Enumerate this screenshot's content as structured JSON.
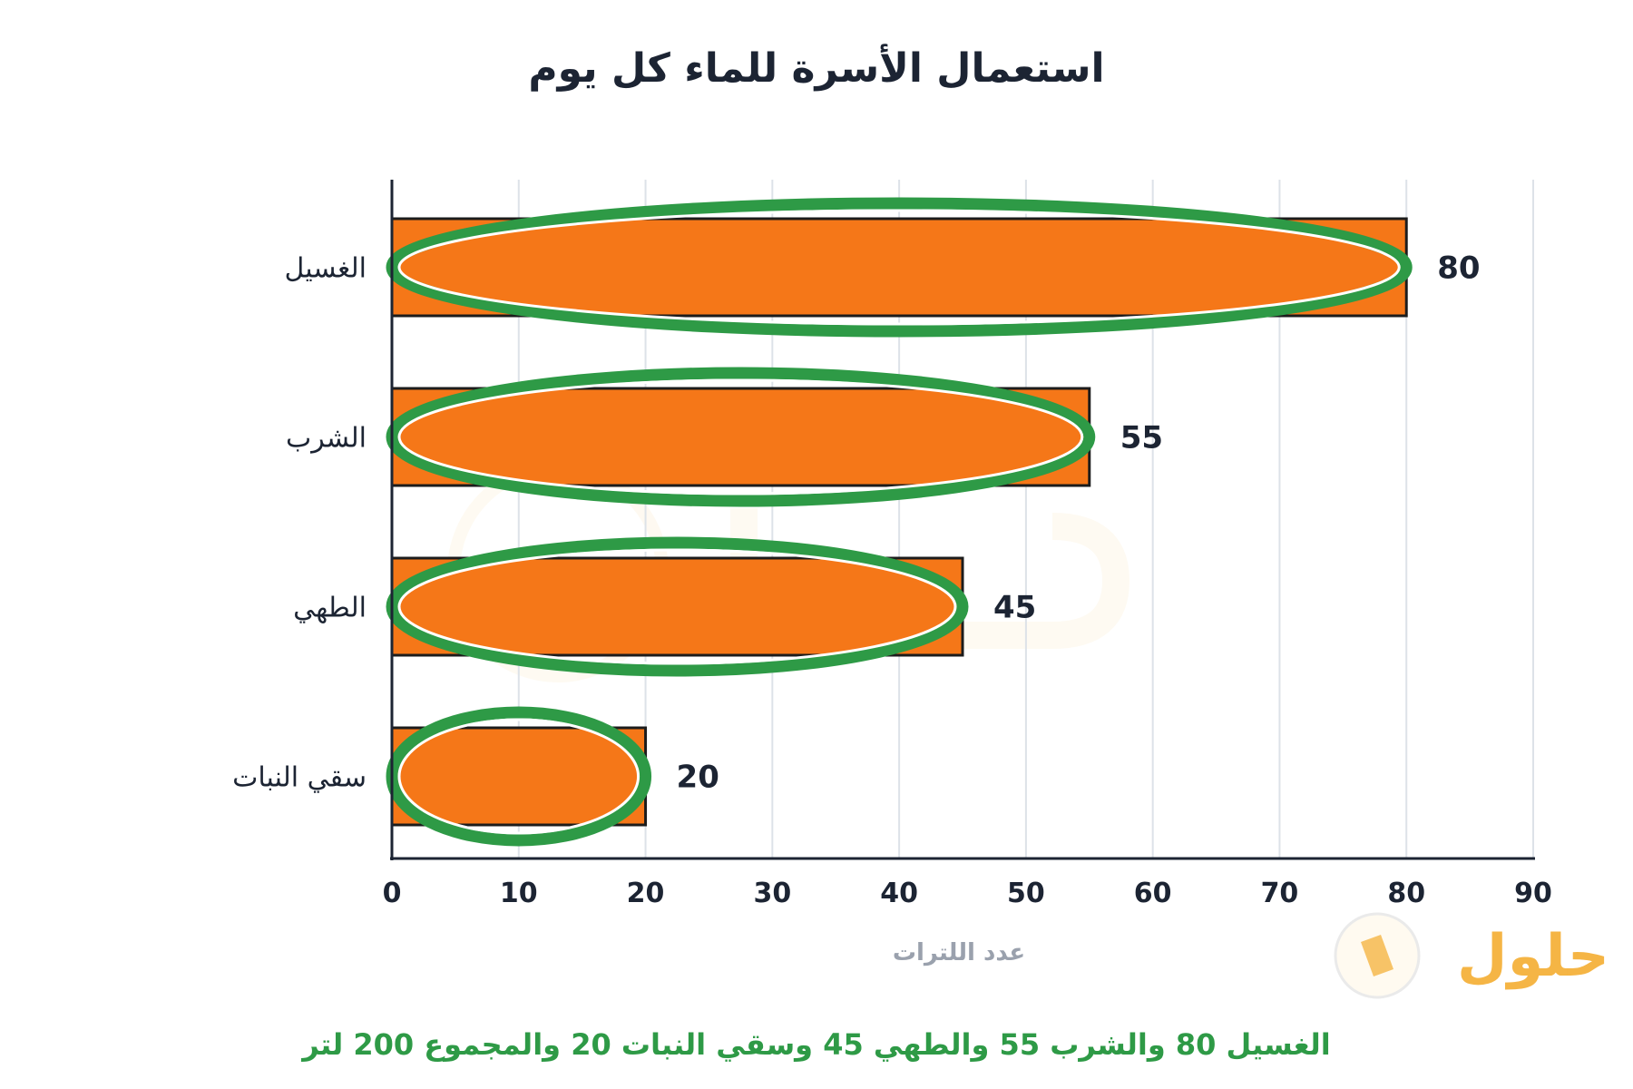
{
  "chart_data": {
    "type": "bar",
    "orientation": "horizontal",
    "title": "استعمال الأسرة للماء كل يوم",
    "xlabel": "عدد اللترات",
    "ylabel": "",
    "categories": [
      "الغسيل",
      "الشرب",
      "الطهي",
      "سقي النبات"
    ],
    "values": [
      80,
      55,
      45,
      20
    ],
    "value_labels": [
      "80",
      "55",
      "45",
      "20"
    ],
    "xlim": [
      0,
      90
    ],
    "ticks": [
      0,
      10,
      20,
      30,
      40,
      50,
      60,
      70,
      80,
      90
    ],
    "tick_labels": [
      "0",
      "10",
      "20",
      "30",
      "40",
      "50",
      "60",
      "70",
      "80",
      "90"
    ],
    "grid": "vertical",
    "legend": "none",
    "annotation": "each bar circled with a green ellipse",
    "summary": "الغسيل 80 والشرب 55 والطهي 45 وسقي النبات 20 والمجموع 200 لتر",
    "colors": {
      "bar": "#f57718",
      "bar_outline": "#1c1c1c",
      "ellipse": "#2e9a46",
      "grid": "#dde2e8",
      "summary_text": "#2e9a46",
      "xlabel_text": "#9aa1ad"
    }
  },
  "watermark": {
    "logo_text": "حلول",
    "logo_color": "#f5b545"
  }
}
